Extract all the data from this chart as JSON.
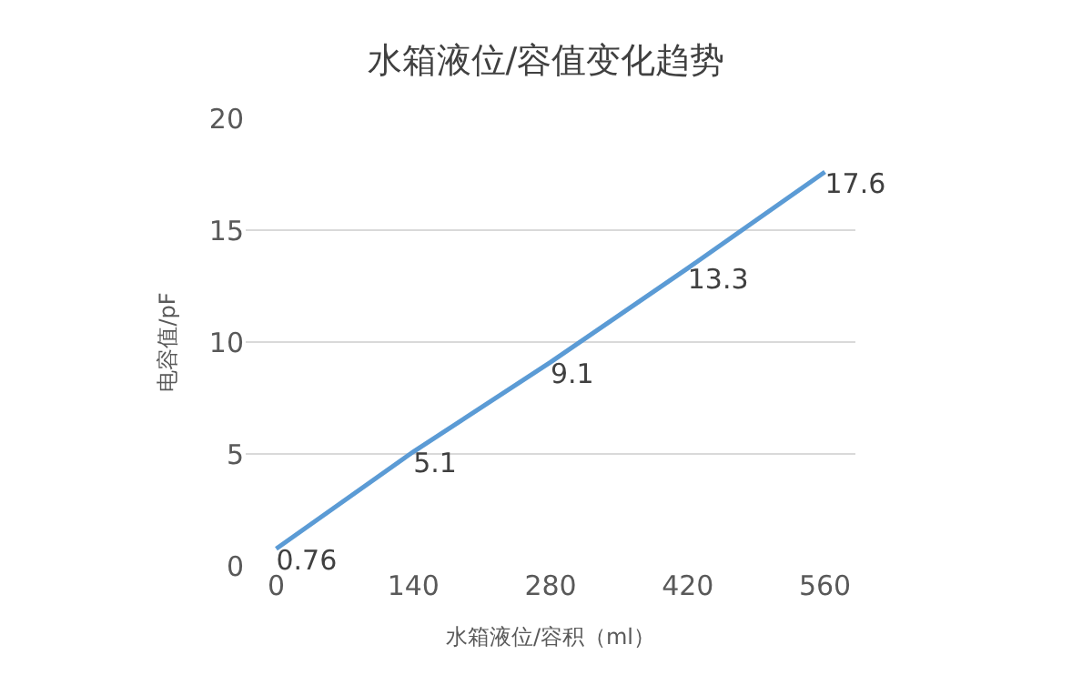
{
  "chart_data": {
    "type": "line",
    "title": "水箱液位/容值变化趋势",
    "xlabel": "水箱液位/容积（ml）",
    "ylabel": "电容值/pF",
    "categories": [
      "0",
      "140",
      "280",
      "420",
      "560"
    ],
    "series": [
      {
        "color": "#5b9bd5",
        "values": [
          0.76,
          5.1,
          9.1,
          13.3,
          17.6
        ]
      }
    ],
    "ylim": [
      0,
      20
    ],
    "yticks": [
      0,
      5,
      10,
      15,
      20
    ],
    "grid": "y",
    "legend": false,
    "marker": "none",
    "line_style": "solid",
    "data_labels": true
  }
}
